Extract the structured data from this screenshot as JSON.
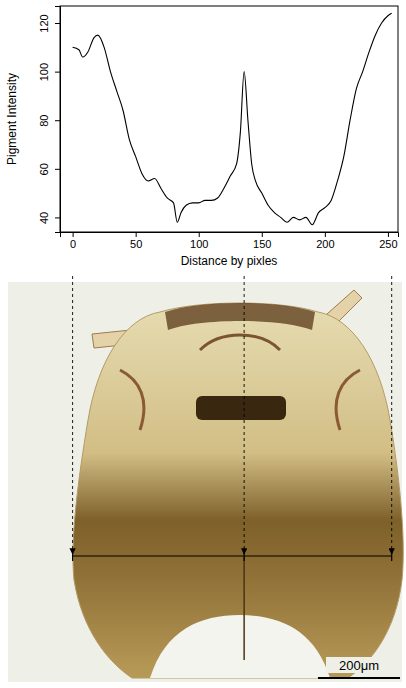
{
  "chart_data": {
    "type": "line",
    "x_label": "Distance by pixles",
    "y_label": "Pigment Intensity",
    "x": [
      0,
      5,
      8,
      12,
      17,
      20,
      25,
      30,
      35,
      40,
      45,
      50,
      55,
      60,
      65,
      70,
      75,
      80,
      83,
      86,
      90,
      95,
      100,
      105,
      110,
      115,
      120,
      125,
      130,
      133,
      136,
      139,
      142,
      145,
      150,
      155,
      160,
      165,
      170,
      175,
      180,
      185,
      190,
      195,
      200,
      205,
      210,
      215,
      220,
      225,
      230,
      235,
      240,
      245,
      250,
      253
    ],
    "values": [
      110,
      109,
      106,
      108,
      114,
      115,
      110,
      100,
      92,
      84,
      72,
      65,
      58,
      55,
      56,
      52,
      48,
      46,
      38,
      42,
      45,
      46,
      46,
      47,
      47,
      48,
      52,
      57,
      62,
      75,
      100,
      80,
      62,
      55,
      50,
      45,
      42,
      40,
      38,
      40,
      39,
      40,
      37,
      42,
      44,
      47,
      55,
      65,
      80,
      93,
      100,
      108,
      115,
      120,
      123,
      124
    ],
    "color": "#000000",
    "xlim": [
      -10,
      258
    ],
    "ylim": [
      34,
      127
    ],
    "xticks": [
      0,
      50,
      100,
      150,
      200,
      250
    ],
    "yticks": [
      40,
      60,
      80,
      100,
      120
    ],
    "annotations": [
      "200μm"
    ]
  }
}
